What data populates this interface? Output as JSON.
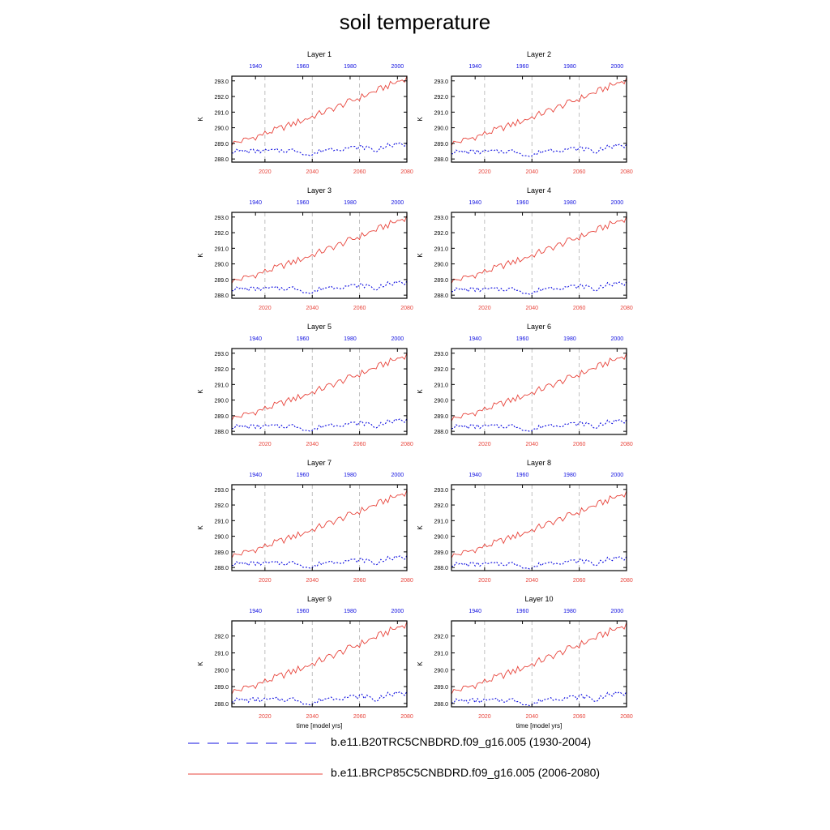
{
  "figure": {
    "title": "soil temperature",
    "x_axis_title": "time [model yrs]"
  },
  "colors": {
    "future": "#e8453c",
    "historical": "#1010e0",
    "axis": "#000000",
    "grid": "#b0b0b0"
  },
  "legend": [
    {
      "label": "b.e11.B20TRC5CNBDRD.f09_g16.005 (1930-2004)",
      "color": "#1010e0",
      "style": "dashed"
    },
    {
      "label": "b.e11.BRCP85C5CNBDRD.f09_g16.005 (2006-2080)",
      "color": "#e8453c",
      "style": "solid"
    }
  ],
  "chart_data": [
    {
      "type": "line",
      "title": "Layer 1",
      "ylabel": "K",
      "ylim": [
        287.8,
        293.3
      ],
      "yticks": [
        "288.0",
        "289.0",
        "290.0",
        "291.0",
        "292.0",
        "293.0"
      ],
      "xlim_bottom": [
        2006,
        2080
      ],
      "xticks_bottom": [
        "2020",
        "2040",
        "2060",
        "2080"
      ],
      "xticks_top": [
        "1940",
        "1960",
        "1980",
        "2000"
      ],
      "series": [
        {
          "name": "b.e11.BRCP85C5CNBDRD.f09_g16.005 (2006-2080)",
          "start": 289.0,
          "end": 293.2
        },
        {
          "name": "b.e11.B20TRC5CNBDRD.f09_g16.005 (1930-2004)",
          "start": 288.5,
          "end": 288.95
        }
      ]
    },
    {
      "type": "line",
      "title": "Layer 2",
      "ylabel": "K",
      "ylim": [
        287.8,
        293.3
      ],
      "yticks": [
        "288.0",
        "289.0",
        "290.0",
        "291.0",
        "292.0",
        "293.0"
      ],
      "xlim_bottom": [
        2006,
        2080
      ],
      "xticks_bottom": [
        "2020",
        "2040",
        "2060",
        "2080"
      ],
      "xticks_top": [
        "1940",
        "1960",
        "1980",
        "2000"
      ],
      "series": [
        {
          "name": "b.e11.BRCP85C5CNBDRD.f09_g16.005 (2006-2080)",
          "start": 289.0,
          "end": 293.1
        },
        {
          "name": "b.e11.B20TRC5CNBDRD.f09_g16.005 (1930-2004)",
          "start": 288.45,
          "end": 288.85
        }
      ]
    },
    {
      "type": "line",
      "title": "Layer 3",
      "ylabel": "K",
      "ylim": [
        287.8,
        293.3
      ],
      "yticks": [
        "288.0",
        "289.0",
        "290.0",
        "291.0",
        "292.0",
        "293.0"
      ],
      "xlim_bottom": [
        2006,
        2080
      ],
      "xticks_bottom": [
        "2020",
        "2040",
        "2060",
        "2080"
      ],
      "xticks_top": [
        "1940",
        "1960",
        "1980",
        "2000"
      ],
      "series": [
        {
          "name": "b.e11.BRCP85C5CNBDRD.f09_g16.005 (2006-2080)",
          "start": 288.9,
          "end": 293.0
        },
        {
          "name": "b.e11.B20TRC5CNBDRD.f09_g16.005 (1930-2004)",
          "start": 288.4,
          "end": 288.8
        }
      ]
    },
    {
      "type": "line",
      "title": "Layer 4",
      "ylabel": "K",
      "ylim": [
        287.8,
        293.3
      ],
      "yticks": [
        "288.0",
        "289.0",
        "290.0",
        "291.0",
        "292.0",
        "293.0"
      ],
      "xlim_bottom": [
        2006,
        2080
      ],
      "xticks_bottom": [
        "2020",
        "2040",
        "2060",
        "2080"
      ],
      "xticks_top": [
        "1940",
        "1960",
        "1980",
        "2000"
      ],
      "series": [
        {
          "name": "b.e11.BRCP85C5CNBDRD.f09_g16.005 (2006-2080)",
          "start": 288.9,
          "end": 292.95
        },
        {
          "name": "b.e11.B20TRC5CNBDRD.f09_g16.005 (1930-2004)",
          "start": 288.35,
          "end": 288.75
        }
      ]
    },
    {
      "type": "line",
      "title": "Layer 5",
      "ylabel": "K",
      "ylim": [
        287.8,
        293.3
      ],
      "yticks": [
        "288.0",
        "289.0",
        "290.0",
        "291.0",
        "292.0",
        "293.0"
      ],
      "xlim_bottom": [
        2006,
        2080
      ],
      "xticks_bottom": [
        "2020",
        "2040",
        "2060",
        "2080"
      ],
      "xticks_top": [
        "1940",
        "1960",
        "1980",
        "2000"
      ],
      "series": [
        {
          "name": "b.e11.BRCP85C5CNBDRD.f09_g16.005 (2006-2080)",
          "start": 288.85,
          "end": 292.9
        },
        {
          "name": "b.e11.B20TRC5CNBDRD.f09_g16.005 (1930-2004)",
          "start": 288.3,
          "end": 288.7
        }
      ]
    },
    {
      "type": "line",
      "title": "Layer 6",
      "ylabel": "K",
      "ylim": [
        287.8,
        293.3
      ],
      "yticks": [
        "288.0",
        "289.0",
        "290.0",
        "291.0",
        "292.0",
        "293.0"
      ],
      "xlim_bottom": [
        2006,
        2080
      ],
      "xticks_bottom": [
        "2020",
        "2040",
        "2060",
        "2080"
      ],
      "xticks_top": [
        "1940",
        "1960",
        "1980",
        "2000"
      ],
      "series": [
        {
          "name": "b.e11.BRCP85C5CNBDRD.f09_g16.005 (2006-2080)",
          "start": 288.8,
          "end": 292.9
        },
        {
          "name": "b.e11.B20TRC5CNBDRD.f09_g16.005 (1930-2004)",
          "start": 288.3,
          "end": 288.65
        }
      ]
    },
    {
      "type": "line",
      "title": "Layer 7",
      "ylabel": "K",
      "ylim": [
        287.8,
        293.3
      ],
      "yticks": [
        "288.0",
        "289.0",
        "290.0",
        "291.0",
        "292.0",
        "293.0"
      ],
      "xlim_bottom": [
        2006,
        2080
      ],
      "xticks_bottom": [
        "2020",
        "2040",
        "2060",
        "2080"
      ],
      "xticks_top": [
        "1940",
        "1960",
        "1980",
        "2000"
      ],
      "series": [
        {
          "name": "b.e11.BRCP85C5CNBDRD.f09_g16.005 (2006-2080)",
          "start": 288.75,
          "end": 292.85
        },
        {
          "name": "b.e11.B20TRC5CNBDRD.f09_g16.005 (1930-2004)",
          "start": 288.25,
          "end": 288.65
        }
      ]
    },
    {
      "type": "line",
      "title": "Layer 8",
      "ylabel": "K",
      "ylim": [
        287.8,
        293.3
      ],
      "yticks": [
        "288.0",
        "289.0",
        "290.0",
        "291.0",
        "292.0",
        "293.0"
      ],
      "xlim_bottom": [
        2006,
        2080
      ],
      "xticks_bottom": [
        "2020",
        "2040",
        "2060",
        "2080"
      ],
      "xticks_top": [
        "1940",
        "1960",
        "1980",
        "2000"
      ],
      "series": [
        {
          "name": "b.e11.BRCP85C5CNBDRD.f09_g16.005 (2006-2080)",
          "start": 288.75,
          "end": 292.8
        },
        {
          "name": "b.e11.B20TRC5CNBDRD.f09_g16.005 (1930-2004)",
          "start": 288.2,
          "end": 288.6
        }
      ]
    },
    {
      "type": "line",
      "title": "Layer 9",
      "ylabel": "K",
      "ylim": [
        287.8,
        292.9
      ],
      "yticks": [
        "288.0",
        "289.0",
        "290.0",
        "291.0",
        "292.0"
      ],
      "xlim_bottom": [
        2006,
        2080
      ],
      "xticks_bottom": [
        "2020",
        "2040",
        "2060",
        "2080"
      ],
      "xticks_top": [
        "1940",
        "1960",
        "1980",
        "2000"
      ],
      "series": [
        {
          "name": "b.e11.BRCP85C5CNBDRD.f09_g16.005 (2006-2080)",
          "start": 288.7,
          "end": 292.75
        },
        {
          "name": "b.e11.B20TRC5CNBDRD.f09_g16.005 (1930-2004)",
          "start": 288.2,
          "end": 288.6
        }
      ]
    },
    {
      "type": "line",
      "title": "Layer 10",
      "ylabel": "K",
      "ylim": [
        287.8,
        292.9
      ],
      "yticks": [
        "288.0",
        "289.0",
        "290.0",
        "291.0",
        "292.0"
      ],
      "xlim_bottom": [
        2006,
        2080
      ],
      "xticks_bottom": [
        "2020",
        "2040",
        "2060",
        "2080"
      ],
      "xticks_top": [
        "1940",
        "1960",
        "1980",
        "2000"
      ],
      "series": [
        {
          "name": "b.e11.BRCP85C5CNBDRD.f09_g16.005 (2006-2080)",
          "start": 288.7,
          "end": 292.7
        },
        {
          "name": "b.e11.B20TRC5CNBDRD.f09_g16.005 (1930-2004)",
          "start": 288.15,
          "end": 288.6
        }
      ]
    }
  ]
}
